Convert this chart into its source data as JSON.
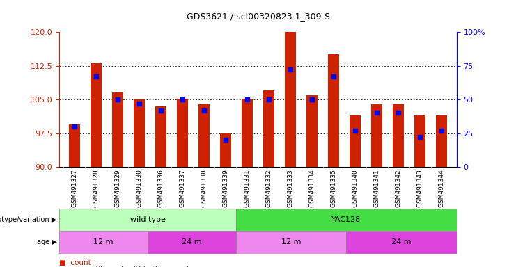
{
  "title": "GDS3621 / scl00320823.1_309-S",
  "samples": [
    "GSM491327",
    "GSM491328",
    "GSM491329",
    "GSM491330",
    "GSM491336",
    "GSM491337",
    "GSM491338",
    "GSM491339",
    "GSM491331",
    "GSM491332",
    "GSM491333",
    "GSM491334",
    "GSM491335",
    "GSM491340",
    "GSM491341",
    "GSM491342",
    "GSM491343",
    "GSM491344"
  ],
  "bar_heights": [
    99.5,
    113.0,
    106.5,
    105.0,
    103.5,
    105.2,
    104.0,
    97.5,
    105.1,
    107.0,
    120.0,
    106.0,
    115.0,
    101.5,
    104.0,
    104.0,
    101.5,
    101.5
  ],
  "percentile_values": [
    30,
    67,
    50,
    47,
    42,
    50,
    42,
    20,
    50,
    50,
    72,
    50,
    67,
    27,
    40,
    40,
    22,
    27
  ],
  "ylim_left": [
    90,
    120
  ],
  "ylim_right": [
    0,
    100
  ],
  "bar_color": "#cc2200",
  "dot_color": "#0000ee",
  "grid_values": [
    97.5,
    105.0,
    112.5
  ],
  "left_yticks": [
    90,
    97.5,
    105,
    112.5,
    120
  ],
  "right_yticks": [
    0,
    25,
    50,
    75,
    100
  ],
  "genotype_groups": [
    {
      "label": "wild type",
      "start": 0,
      "end": 8,
      "color": "#bbffbb"
    },
    {
      "label": "YAC128",
      "start": 8,
      "end": 18,
      "color": "#44dd44"
    }
  ],
  "age_groups": [
    {
      "label": "12 m",
      "start": 0,
      "end": 4,
      "color": "#ee88ee"
    },
    {
      "label": "24 m",
      "start": 4,
      "end": 8,
      "color": "#dd44dd"
    },
    {
      "label": "12 m",
      "start": 8,
      "end": 13,
      "color": "#ee88ee"
    },
    {
      "label": "24 m",
      "start": 13,
      "end": 18,
      "color": "#dd44dd"
    }
  ],
  "legend_count_color": "#cc2200",
  "legend_pct_color": "#0000ee",
  "left_label_color": "#cc2200",
  "right_label_color": "#0000ee",
  "xtick_bg_color": "#cccccc",
  "title_fontsize": 9,
  "bar_width": 0.5
}
